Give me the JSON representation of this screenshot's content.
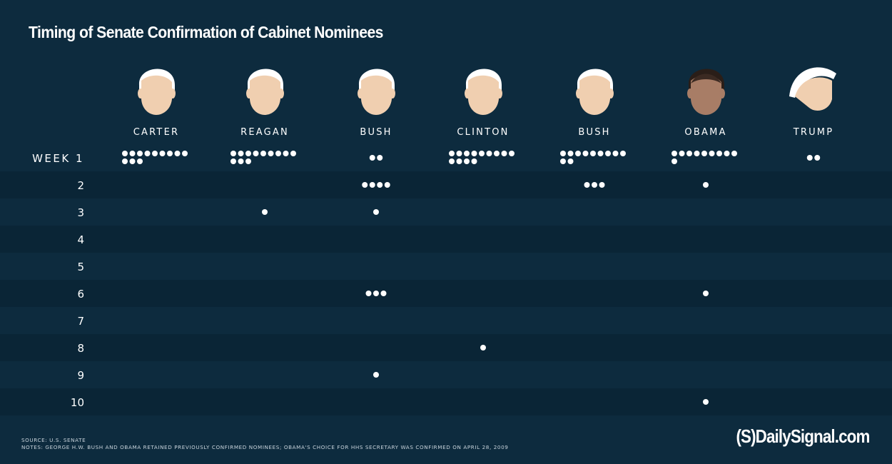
{
  "title": "Timing of Senate Confirmation of Cabinet Nominees",
  "footer": {
    "source": "SOURCE: U.S. SENATE",
    "notes": "NOTES: GEORGE H.W. BUSH AND OBAMA RETAINED PREVIOUSLY CONFIRMED NOMINEES; OBAMA'S CHOICE FOR HHS SECRETARY WAS CONFIRMED ON APRIL 28, 2009"
  },
  "brand": "(S)DailySignal.com",
  "colors": {
    "background": "#0d2b3e",
    "row_band": "#0a2536",
    "dot": "#ffffff",
    "hair": "#ffffff",
    "skin_light": "#f0cfb0",
    "skin_dark": "#a87d66"
  },
  "chart_data": {
    "type": "dot-matrix",
    "title": "Timing of Senate Confirmation of Cabinet Nominees",
    "row_labels": [
      "WEEK 1",
      "2",
      "3",
      "4",
      "5",
      "6",
      "7",
      "8",
      "9",
      "10"
    ],
    "series": [
      {
        "name": "CARTER",
        "icon": "carter-portrait-icon",
        "values": [
          12,
          0,
          0,
          0,
          0,
          0,
          0,
          0,
          0,
          0
        ]
      },
      {
        "name": "REAGAN",
        "icon": "reagan-portrait-icon",
        "values": [
          12,
          0,
          1,
          0,
          0,
          0,
          0,
          0,
          0,
          0
        ]
      },
      {
        "name": "BUSH",
        "icon": "bush-sr-portrait-icon",
        "values": [
          2,
          4,
          1,
          0,
          0,
          3,
          0,
          0,
          1,
          0
        ]
      },
      {
        "name": "CLINTON",
        "icon": "clinton-portrait-icon",
        "values": [
          13,
          0,
          0,
          0,
          0,
          0,
          0,
          1,
          0,
          0
        ]
      },
      {
        "name": "BUSH",
        "icon": "bush-jr-portrait-icon",
        "values": [
          11,
          3,
          0,
          0,
          0,
          0,
          0,
          0,
          0,
          0
        ]
      },
      {
        "name": "OBAMA",
        "icon": "obama-portrait-icon",
        "values": [
          10,
          1,
          0,
          0,
          0,
          1,
          0,
          0,
          0,
          1
        ]
      },
      {
        "name": "TRUMP",
        "icon": "trump-portrait-icon",
        "values": [
          2,
          0,
          0,
          0,
          0,
          0,
          0,
          0,
          0,
          0
        ]
      }
    ],
    "dots_per_line": 9,
    "grid": false,
    "legend": "none"
  }
}
